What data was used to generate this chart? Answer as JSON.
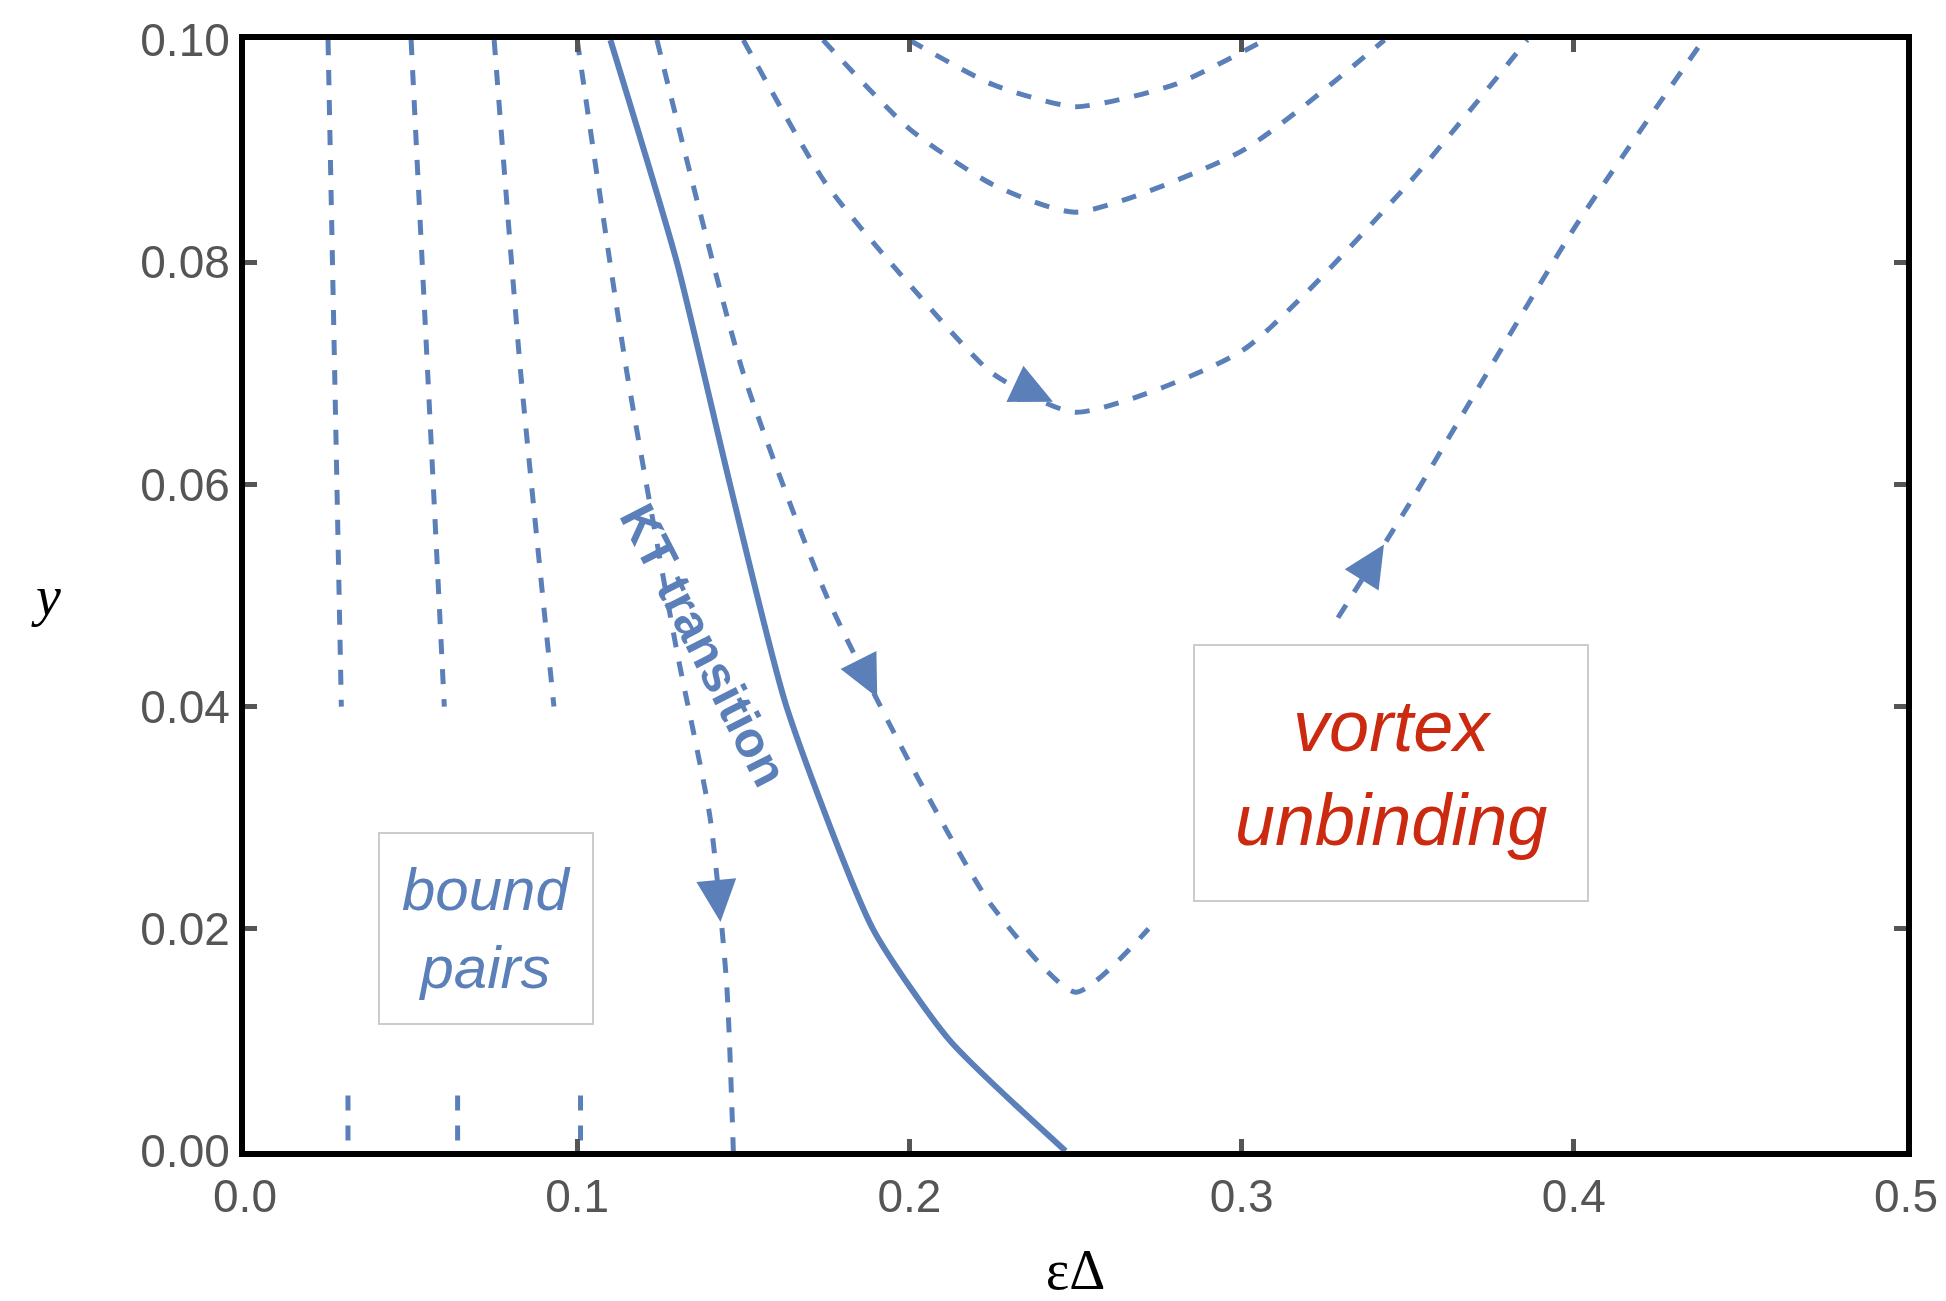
{
  "chart_data": {
    "type": "line",
    "xlabel": "εΔ",
    "ylabel": "y",
    "line_style": "dashed",
    "marker": "none",
    "grid": false,
    "xlim": [
      0,
      0.5
    ],
    "ylim": [
      0,
      0.1
    ],
    "xticks": [
      {
        "value": 0,
        "label": "0.0"
      },
      0.1,
      0.2,
      0.3,
      0.4,
      0.5
    ],
    "yticks": [
      {
        "value": 0,
        "label": "0.00"
      },
      {
        "value": 0.02,
        "label": "0.02"
      },
      {
        "value": 0.04,
        "label": "0.04"
      },
      {
        "value": 0.06,
        "label": "0.06"
      },
      {
        "value": 0.08,
        "label": "0.08"
      },
      {
        "value": 0.1,
        "label": "0.10"
      }
    ],
    "series": [
      {
        "color": "#5b80b9",
        "x": [
          0.025,
          0.027,
          0.029,
          0.0305,
          0.031,
          0.031
        ],
        "values": [
          0.1,
          0.07,
          0.04,
          null,
          0.005,
          0
        ]
      },
      {
        "color": "#5b80b9",
        "x": [
          0.05,
          0.055,
          0.06,
          0.062,
          0.064,
          0.064
        ],
        "values": [
          0.1,
          0.07,
          0.04,
          null,
          0.005,
          0
        ]
      },
      {
        "color": "#5b80b9",
        "x": [
          0.075,
          0.083,
          0.093,
          0.098,
          0.101,
          0.101
        ],
        "values": [
          0.1,
          0.07,
          0.04,
          null,
          0.005,
          0
        ]
      },
      {
        "color": "#5b80b9",
        "x": [
          0.1,
          0.115,
          0.13,
          0.14,
          0.145,
          0.147
        ],
        "values": [
          0.1,
          0.07,
          0.045,
          0.03,
          0.015,
          0
        ]
      },
      {
        "color": "#5b80b9",
        "line_style": "solid",
        "x": [
          0.11,
          0.13,
          0.146,
          0.163,
          0.189,
          0.212,
          0.247
        ],
        "values": [
          0.1,
          0.08,
          0.06,
          0.04,
          0.02,
          0.01,
          0
        ]
      },
      {
        "color": "#5b80b9",
        "x": [
          0.124,
          0.15,
          0.175,
          0.2,
          0.225,
          0.25,
          0.272,
          0.3,
          0.329,
          0.35,
          0.4,
          0.439
        ],
        "values": [
          0.1,
          0.07,
          0.05,
          0.035,
          0.022,
          0.0143,
          0.02,
          null,
          0.048,
          0.058,
          0.083,
          0.1
        ]
      },
      {
        "color": "#5b80b9",
        "x": [
          0.15,
          0.175,
          0.2,
          0.225,
          0.25,
          0.3,
          0.35,
          0.386
        ],
        "values": [
          0.1,
          0.087,
          0.078,
          0.07,
          0.0665,
          0.072,
          0.087,
          0.1
        ]
      },
      {
        "color": "#5b80b9",
        "x": [
          0.174,
          0.2,
          0.225,
          0.25,
          0.3,
          0.343
        ],
        "values": [
          0.1,
          0.092,
          0.087,
          0.0845,
          0.09,
          0.1
        ]
      },
      {
        "color": "#5b80b9",
        "x": [
          0.2,
          0.225,
          0.25,
          0.28,
          0.307
        ],
        "values": [
          0.1,
          0.096,
          0.094,
          0.096,
          0.1
        ]
      }
    ],
    "annotations": [
      "KT transition",
      "bound pairs",
      "vortex unbinding"
    ]
  }
}
